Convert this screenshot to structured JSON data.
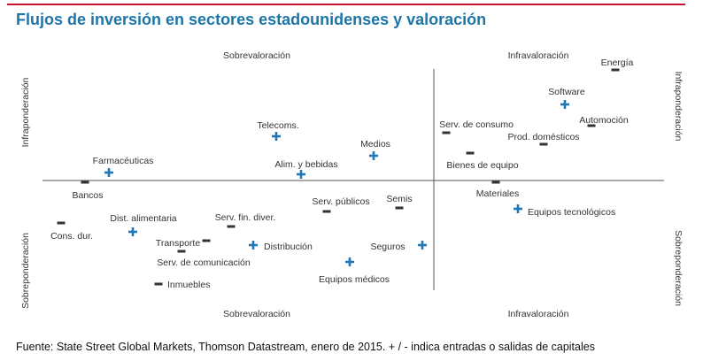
{
  "title": "Flujos de inversión en sectores estadounidenses y valoración",
  "footer": "Fuente: State Street Global Markets, Thomson Datastream, enero de 2015. + / - indica entradas o salidas de capitales",
  "colors": {
    "title": "#1d75a8",
    "rule": "#c8102e",
    "plus": "#1f77b4",
    "minus": "#333333",
    "axis": "#555555"
  },
  "chart_data": {
    "type": "scatter",
    "quadrant_labels": {
      "top_left": "Sobrevaloración",
      "top_right": "Infravaloración",
      "bottom_left": "Sobrevaloración",
      "bottom_right": "Infravaloración",
      "left_upper": "Infraponderación",
      "left_lower": "Sobreponderación",
      "right_upper": "Infraponderación",
      "right_lower": "Sobreponderación"
    },
    "points": [
      {
        "label": "Energía",
        "sign": "-"
      },
      {
        "label": "Software",
        "sign": "+"
      },
      {
        "label": "Automoción",
        "sign": "-"
      },
      {
        "label": "Prod. domésticos",
        "sign": "-"
      },
      {
        "label": "Serv. de consumo",
        "sign": "-"
      },
      {
        "label": "Bienes de equipo",
        "sign": "-"
      },
      {
        "label": "Materiales",
        "sign": "-"
      },
      {
        "label": "Equipos tecnológicos",
        "sign": "+"
      },
      {
        "label": "Telecoms.",
        "sign": "+"
      },
      {
        "label": "Medios",
        "sign": "+"
      },
      {
        "label": "Alim. y bebidas",
        "sign": "+"
      },
      {
        "label": "Farmacéuticas",
        "sign": "+"
      },
      {
        "label": "Bancos",
        "sign": "-"
      },
      {
        "label": "Serv. públicos",
        "sign": "-"
      },
      {
        "label": "Semis",
        "sign": "-"
      },
      {
        "label": "Cons. dur.",
        "sign": "-"
      },
      {
        "label": "Dist. alimentaria",
        "sign": "+"
      },
      {
        "label": "Serv. fin. diver.",
        "sign": "-"
      },
      {
        "label": "Transporte",
        "sign": "-"
      },
      {
        "label": "Distribución",
        "sign": "+"
      },
      {
        "label": "Seguros",
        "sign": "+"
      },
      {
        "label": "Serv. de comunicación",
        "sign": "-"
      },
      {
        "label": "Equipos médicos",
        "sign": "+"
      },
      {
        "label": "Inmuebles",
        "sign": "-"
      }
    ]
  }
}
